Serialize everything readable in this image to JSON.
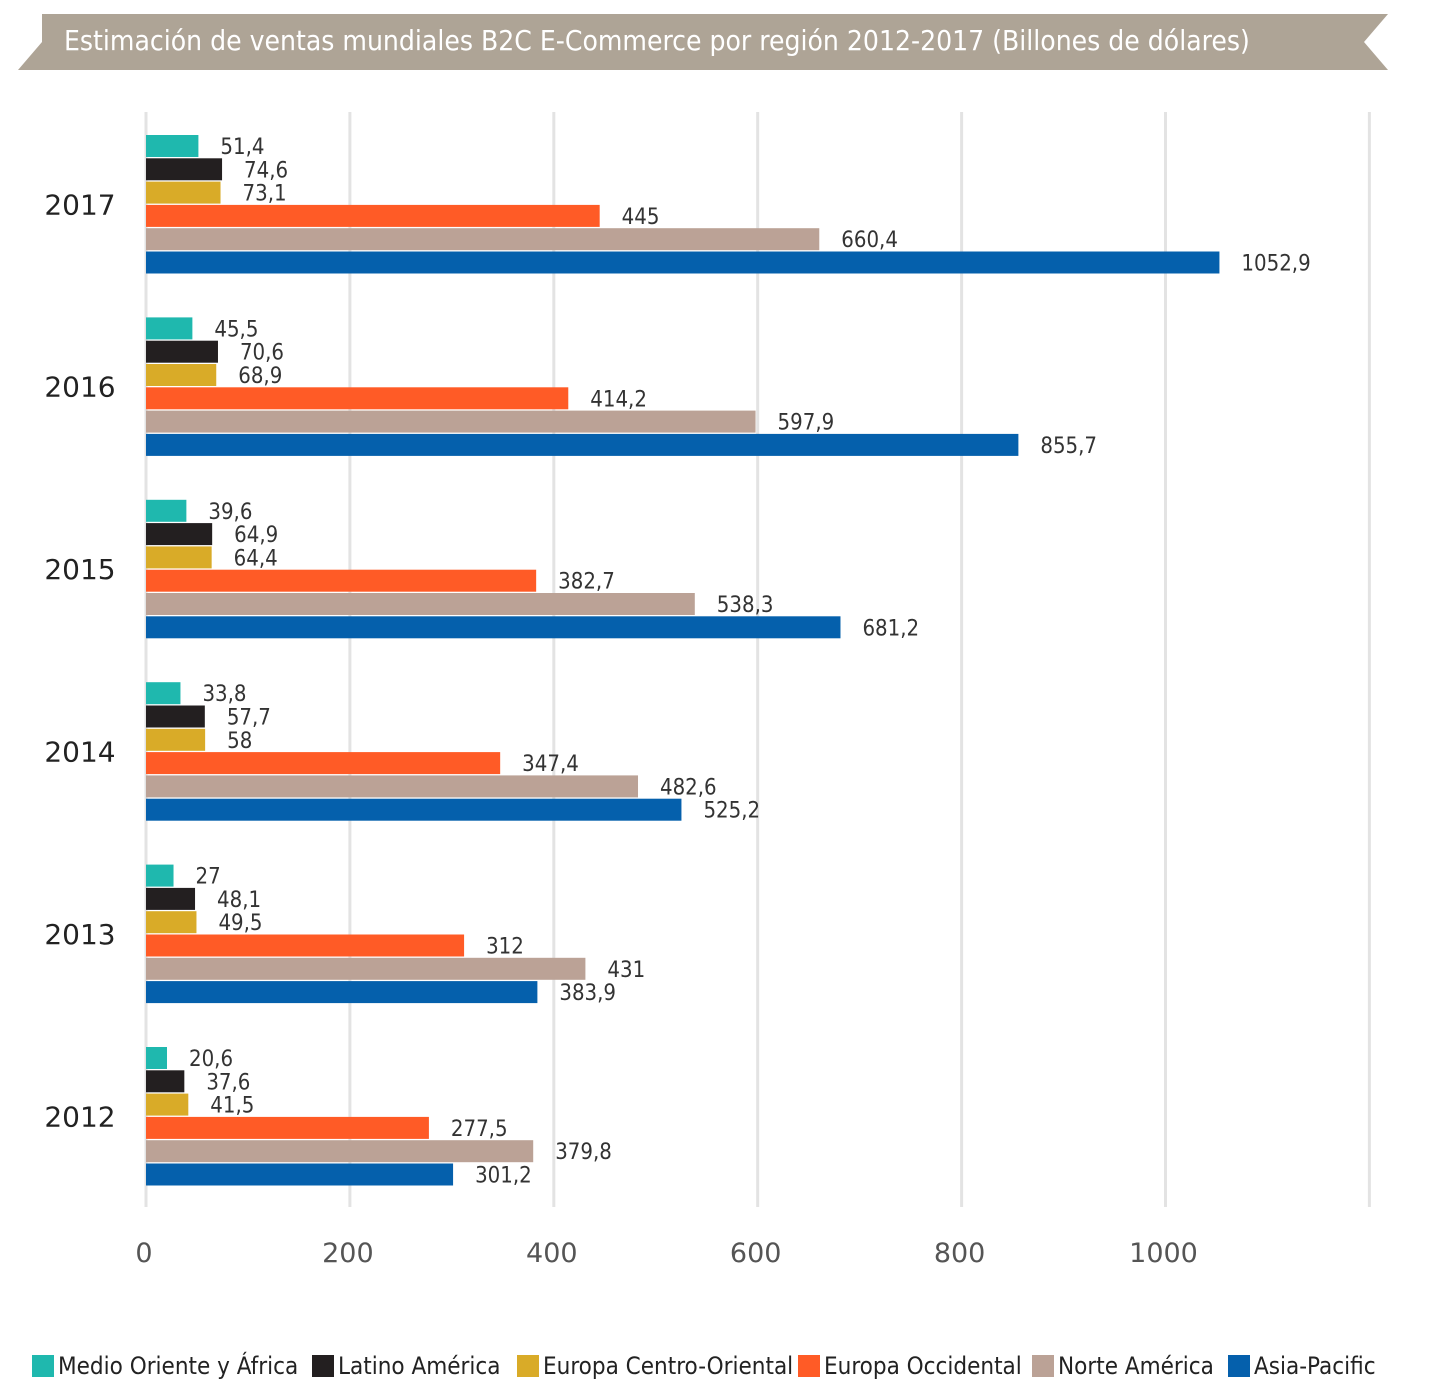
{
  "chart_data": {
    "type": "bar",
    "orientation": "horizontal",
    "title": "Estimación de ventas mundiales B2C E-Commerce por región 2012-2017 (Billones de dólares)",
    "categories": [
      "2017",
      "2016",
      "2015",
      "2014",
      "2013",
      "2012"
    ],
    "xlim": [
      0,
      1200
    ],
    "x_ticks": [
      "0",
      "200",
      "400",
      "600",
      "800",
      "1000"
    ],
    "x_tick_values": [
      0,
      200,
      400,
      600,
      800,
      1000
    ],
    "grid": true,
    "legend_position": "bottom",
    "series": [
      {
        "name": "Medio Oriente y África",
        "color": "#1fb8ae",
        "values": [
          51.4,
          45.5,
          39.6,
          33.8,
          27,
          20.6
        ],
        "labels": [
          "51,4",
          "45,5",
          "39,6",
          "33,8",
          "27",
          "20,6"
        ]
      },
      {
        "name": "Latino América",
        "color": "#231f20",
        "values": [
          74.6,
          70.6,
          64.9,
          57.7,
          48.1,
          37.6
        ],
        "labels": [
          "74,6",
          "70,6",
          "64,9",
          "57,7",
          "48,1",
          "37,6"
        ]
      },
      {
        "name": "Europa Centro-Oriental",
        "color": "#d9ab28",
        "values": [
          73.1,
          68.9,
          64.4,
          58,
          49.5,
          41.5
        ],
        "labels": [
          "73,1",
          "68,9",
          "64,4",
          "58",
          "49,5",
          "41,5"
        ]
      },
      {
        "name": "Europa Occidental",
        "color": "#ff5b26",
        "values": [
          445,
          414.2,
          382.7,
          347.4,
          312,
          277.5
        ],
        "labels": [
          "445",
          "414,2",
          "382,7",
          "347,4",
          "312",
          "277,5"
        ]
      },
      {
        "name": "Norte América",
        "color": "#bba296",
        "values": [
          660.4,
          597.9,
          538.3,
          482.6,
          431,
          379.8
        ],
        "labels": [
          "660,4",
          "597,9",
          "538,3",
          "482,6",
          "431",
          "379,8"
        ]
      },
      {
        "name": "Asia-Pacific",
        "color": "#0560ac",
        "values": [
          1052.9,
          855.7,
          681.2,
          525.2,
          383.9,
          301.2
        ],
        "labels": [
          "1052,9",
          "855,7",
          "681,2",
          "525,2",
          "383,9",
          "301,2"
        ]
      }
    ]
  },
  "colors": {
    "banner": "#aea496",
    "gridline": "#e3e3e3",
    "axis_text": "#555555",
    "label_text": "#333333"
  }
}
